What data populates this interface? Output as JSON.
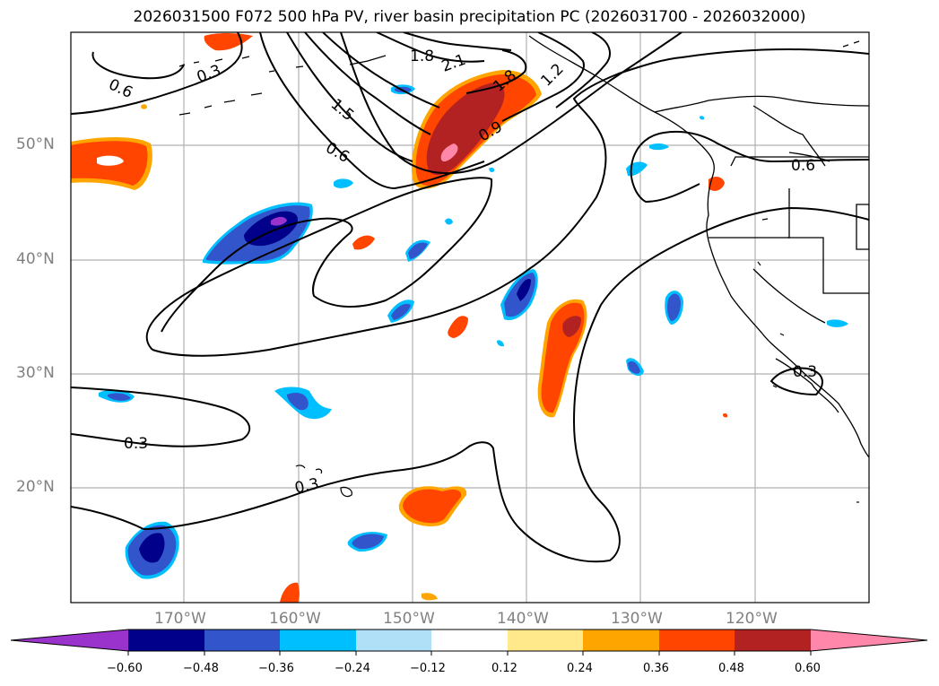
{
  "title": "2026031500 F072 500 hPa PV, river basin precipitation PC (2026031700 - 2026032000)",
  "map": {
    "latitude_labels": [
      "50°N",
      "40°N",
      "30°N",
      "20°N"
    ],
    "longitude_labels": [
      "170°W",
      "160°W",
      "150°W",
      "140°W",
      "130°W",
      "120°W"
    ],
    "contour_labels": [
      "0.6",
      "0.3",
      "1.8",
      "2.1",
      "1.5",
      "1.8",
      "1.2",
      "0.9",
      "0.6",
      "0.6",
      "0.3",
      "0.3",
      "0.3"
    ]
  },
  "colorbar": {
    "ticks": [
      "−0.60",
      "−0.48",
      "−0.36",
      "−0.24",
      "−0.12",
      "0.12",
      "0.24",
      "0.36",
      "0.48",
      "0.60"
    ],
    "colors": [
      "#9933cc",
      "#00008b",
      "#3355cc",
      "#00bfff",
      "#b0e0f8",
      "#ffffff",
      "#ffe98a",
      "#ffa500",
      "#ff4500",
      "#b22222",
      "#ff88aa"
    ]
  },
  "colors": {
    "grid": "#b0b0b0",
    "label_gray": "#808080",
    "contour": "#000000"
  }
}
